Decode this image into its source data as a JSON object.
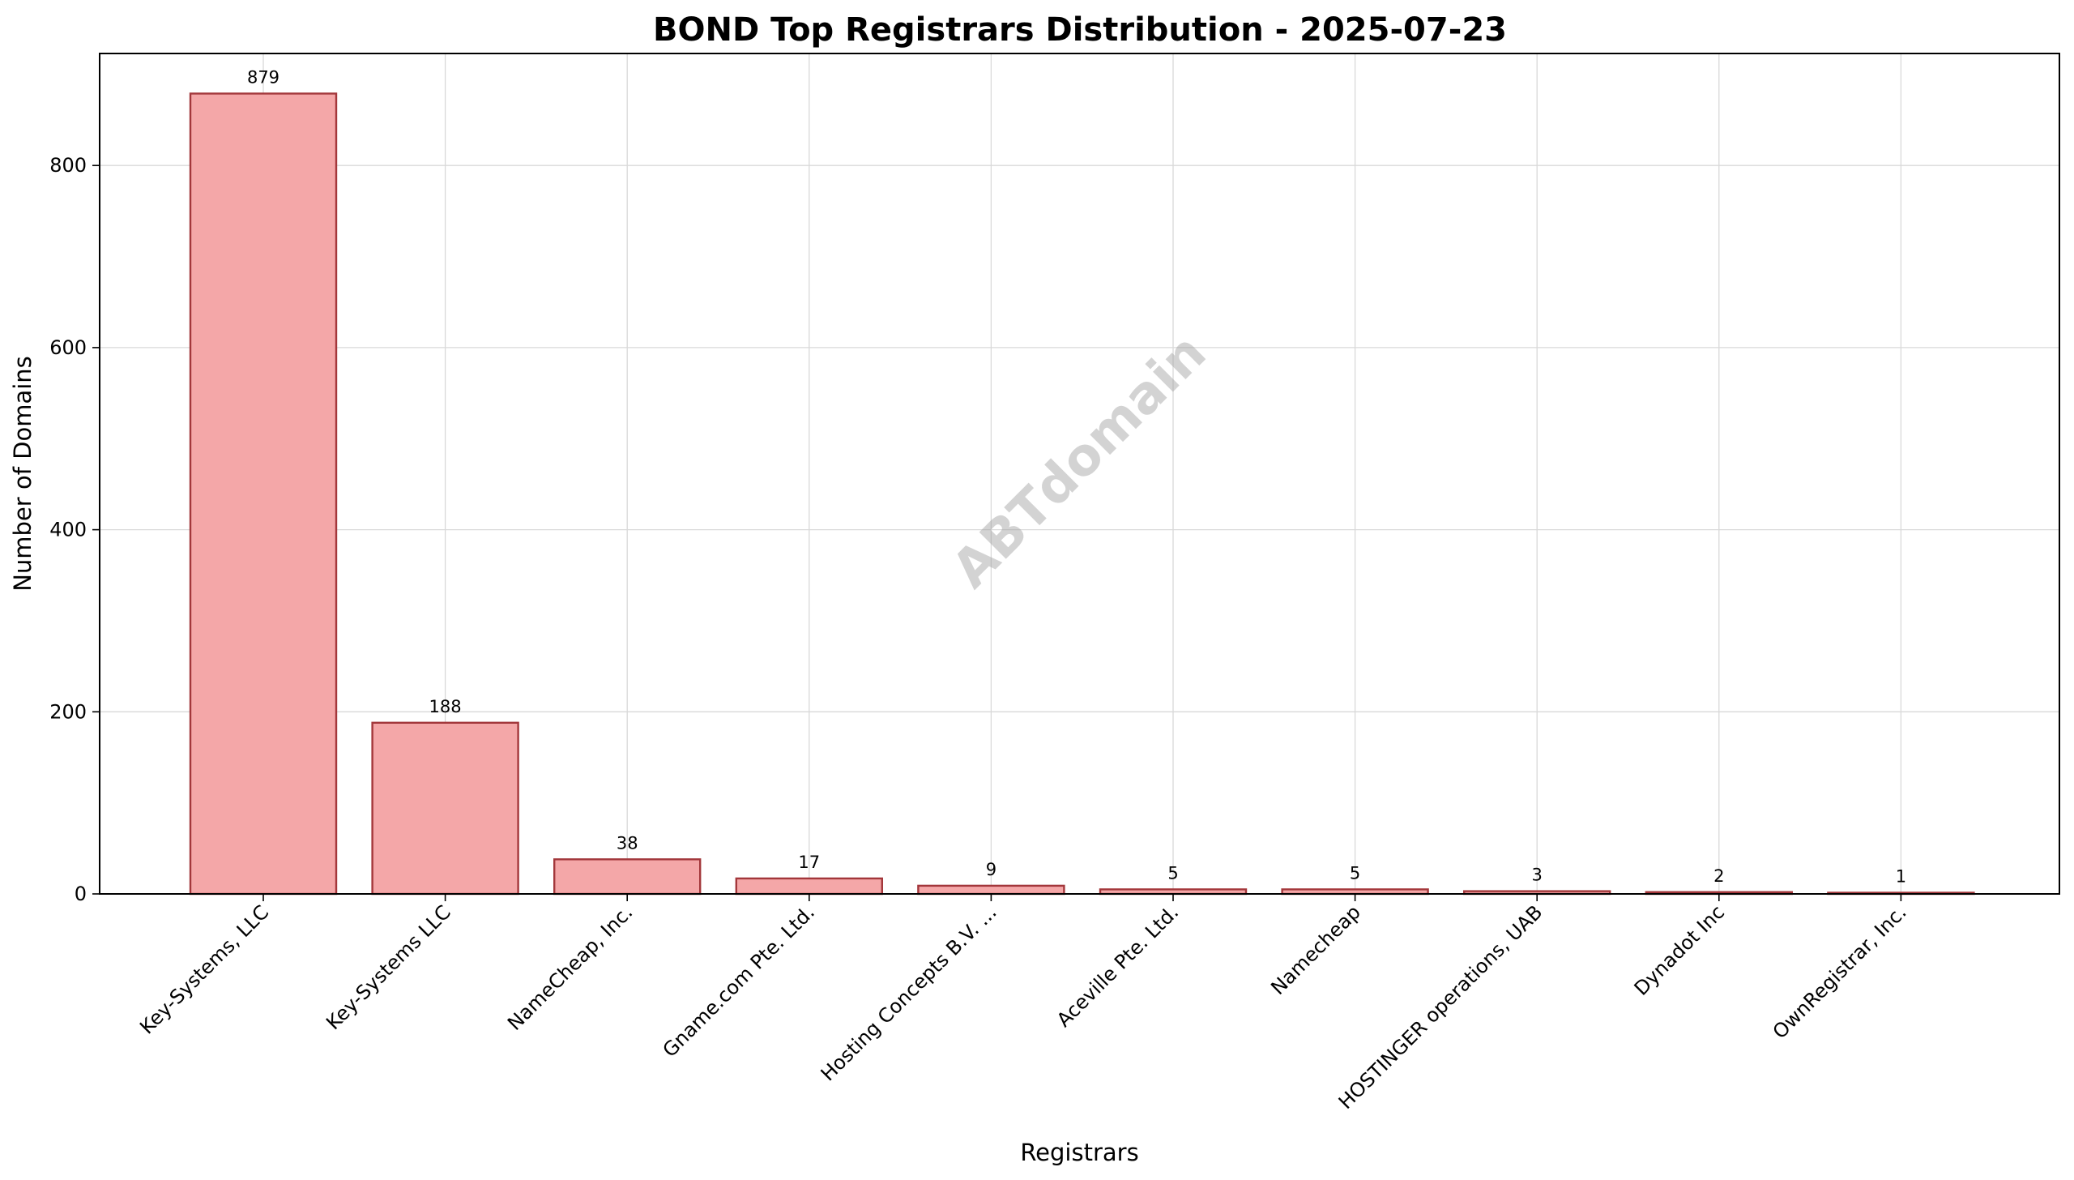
{
  "chart_data": {
    "type": "bar",
    "title": "BOND Top Registrars Distribution - 2025-07-23",
    "xlabel": "Registrars",
    "ylabel": "Number of Domains",
    "categories": [
      "Key-Systems, LLC",
      "Key-Systems LLC",
      "NameCheap, Inc.",
      "Gname.com Pte. Ltd.",
      "Hosting Concepts B.V. ...",
      "Aceville Pte. Ltd.",
      "Namecheap",
      "HOSTINGER operations, UAB",
      "Dynadot Inc",
      "OwnRegistrar, Inc."
    ],
    "values": [
      879,
      188,
      38,
      17,
      9,
      5,
      5,
      3,
      2,
      1
    ],
    "data_labels": [
      "879",
      "188",
      "38",
      "17",
      "9",
      "5",
      "5",
      "3",
      "2",
      "1"
    ],
    "ylim": [
      0,
      923
    ],
    "yticks": [
      0,
      200,
      400,
      600,
      800
    ],
    "grid": true,
    "legend": "none",
    "watermark": "ABTdomain",
    "colors": {
      "bar_fill": "#f4a7a8",
      "bar_edge": "#a3373b",
      "grid": "#d9d9d9",
      "axis": "#000000",
      "watermark": "#9e9e9e"
    }
  }
}
